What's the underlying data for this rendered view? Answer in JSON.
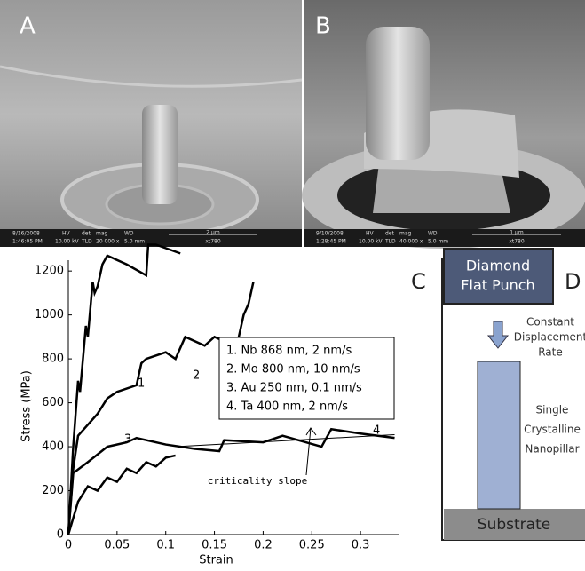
{
  "panels": {
    "a": "A",
    "b": "B",
    "c": "C",
    "d": "D"
  },
  "sem_headers": [
    "HV",
    "det",
    "mag",
    "WD"
  ],
  "sem_bars": [
    {
      "date": "8/16/2008",
      "time": "1:46:05 PM",
      "hv": "10.00 kV",
      "det": "TLD",
      "mag": "20 000 x",
      "wd": "5.0 mm",
      "scale": "2 µm",
      "id": "xt780"
    },
    {
      "date": "9/10/2008",
      "time": "1:28:45 PM",
      "hv": "10.00 kV",
      "det": "TLD",
      "mag": "40 000 x",
      "wd": "5.0 mm",
      "scale": "1 µm",
      "id": "xt780"
    }
  ],
  "chart_data": {
    "type": "line",
    "x_label": "Strain",
    "y_label": "Stress (MPa)",
    "xlim": [
      0,
      0.34
    ],
    "ylim": [
      0,
      1330
    ],
    "xticks": [
      0,
      0.05,
      0.1,
      0.15,
      0.2,
      0.25,
      0.3
    ],
    "yticks": [
      0,
      200,
      400,
      600,
      800,
      1000,
      1200
    ],
    "annotation": "criticality slope",
    "slope_x": [
      0.11,
      0.335
    ],
    "slope_values": [
      400,
      455
    ],
    "series": [
      {
        "name": "1. Nb 868 nm, 2 nm/s",
        "label": "1",
        "color": "#000000",
        "x": [
          0,
          0.005,
          0.01,
          0.012,
          0.018,
          0.02,
          0.025,
          0.027,
          0.03,
          0.035,
          0.04,
          0.06,
          0.08,
          0.082,
          0.09,
          0.115
        ],
        "values": [
          0,
          400,
          700,
          650,
          950,
          900,
          1150,
          1100,
          1130,
          1230,
          1270,
          1230,
          1180,
          1320,
          1320,
          1280
        ]
      },
      {
        "name": "2. Mo 800 nm, 10 nm/s",
        "label": "2",
        "color": "#000000",
        "x": [
          0,
          0.005,
          0.01,
          0.02,
          0.03,
          0.04,
          0.05,
          0.07,
          0.075,
          0.08,
          0.1,
          0.11,
          0.12,
          0.14,
          0.15,
          0.16,
          0.17,
          0.175,
          0.18,
          0.185,
          0.19
        ],
        "values": [
          0,
          300,
          450,
          500,
          550,
          620,
          650,
          680,
          780,
          800,
          830,
          800,
          900,
          860,
          900,
          880,
          800,
          900,
          1000,
          1050,
          1150
        ]
      },
      {
        "name": "3. Au 250 nm, 0.1 nm/s",
        "label": "3",
        "color": "#000000",
        "x": [
          0,
          0.01,
          0.02,
          0.03,
          0.04,
          0.05,
          0.06,
          0.07,
          0.08,
          0.09,
          0.1,
          0.11
        ],
        "values": [
          0,
          150,
          220,
          200,
          260,
          240,
          300,
          280,
          330,
          310,
          350,
          360
        ]
      },
      {
        "name": "4. Ta 400 nm, 2 nm/s",
        "label": "4",
        "color": "#000000",
        "x": [
          0,
          0.005,
          0.02,
          0.04,
          0.06,
          0.07,
          0.1,
          0.13,
          0.155,
          0.16,
          0.2,
          0.22,
          0.26,
          0.27,
          0.3,
          0.335
        ],
        "values": [
          0,
          280,
          330,
          400,
          420,
          440,
          410,
          390,
          380,
          430,
          420,
          450,
          400,
          480,
          460,
          440
        ]
      }
    ]
  },
  "diagram": {
    "punch": [
      "Diamond",
      "Flat Punch"
    ],
    "rate": [
      "Constant",
      "Displacement",
      "Rate"
    ],
    "pillar": [
      "Single",
      "Crystalline",
      "Nanopillar"
    ],
    "substrate": "Substrate"
  }
}
